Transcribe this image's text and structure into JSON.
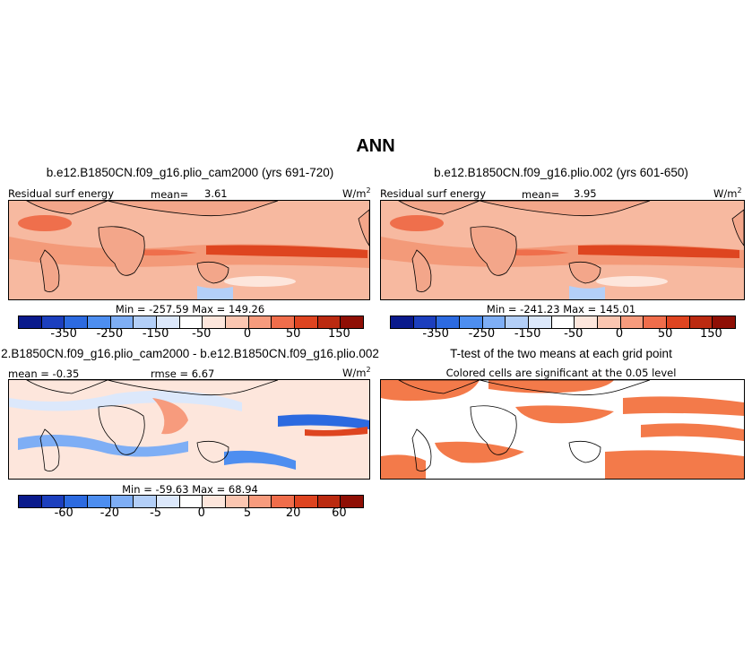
{
  "figure": {
    "title": "ANN"
  },
  "panels": {
    "top_left": {
      "case_title": "b.e12.B1850CN.f09_g16.plio_cam2000 (yrs 691-720)",
      "variable": "Residual surf energy",
      "mean_label": "mean=",
      "mean_value": "3.61",
      "units": "W/m",
      "units_sup": "2",
      "minmax": "Min = -257.59 Max = 149.26"
    },
    "top_right": {
      "case_title": "b.e12.B1850CN.f09_g16.plio.002 (yrs 601-650)",
      "variable": "Residual surf energy",
      "mean_label": "mean=",
      "mean_value": "3.95",
      "units": "W/m",
      "units_sup": "2",
      "minmax": "Min = -241.23 Max = 145.01"
    },
    "bottom_left": {
      "case_title": "2.B1850CN.f09_g16.plio_cam2000 - b.e12.B1850CN.f09_g16.plio.002",
      "mean_text": "mean = -0.35",
      "rmse_text": "rmse = 6.67",
      "units": "W/m",
      "units_sup": "2",
      "minmax": "Min = -59.63 Max = 68.94"
    },
    "bottom_right": {
      "case_title": "T-test of the two means at each grid point",
      "subtitle": "Colored cells are significant at the 0.05 level"
    }
  },
  "colorbars": {
    "colors": [
      "#0a1a8c",
      "#1c3fbe",
      "#2c6ae0",
      "#4d8ef0",
      "#7eaef5",
      "#b3cff8",
      "#dce8fb",
      "#ffffff",
      "#fde6dc",
      "#fbc6b1",
      "#f79b7d",
      "#f06d4b",
      "#de4420",
      "#bb2a10",
      "#8f0f05"
    ],
    "absolute_ticks": [
      "-350",
      "-250",
      "-150",
      "-50",
      "0",
      "50",
      "150"
    ],
    "difference_ticks": [
      "-60",
      "-20",
      "-5",
      "0",
      "5",
      "20",
      "60"
    ]
  },
  "map_colors": {
    "ocean_base": "#f7b9a0",
    "warm": "#ef6f4c",
    "hot": "#de4520",
    "cool": "#b3cff8",
    "white": "#ffffff",
    "diff_base": "#fde6dc",
    "ttest_fill": "#f37a4a"
  }
}
